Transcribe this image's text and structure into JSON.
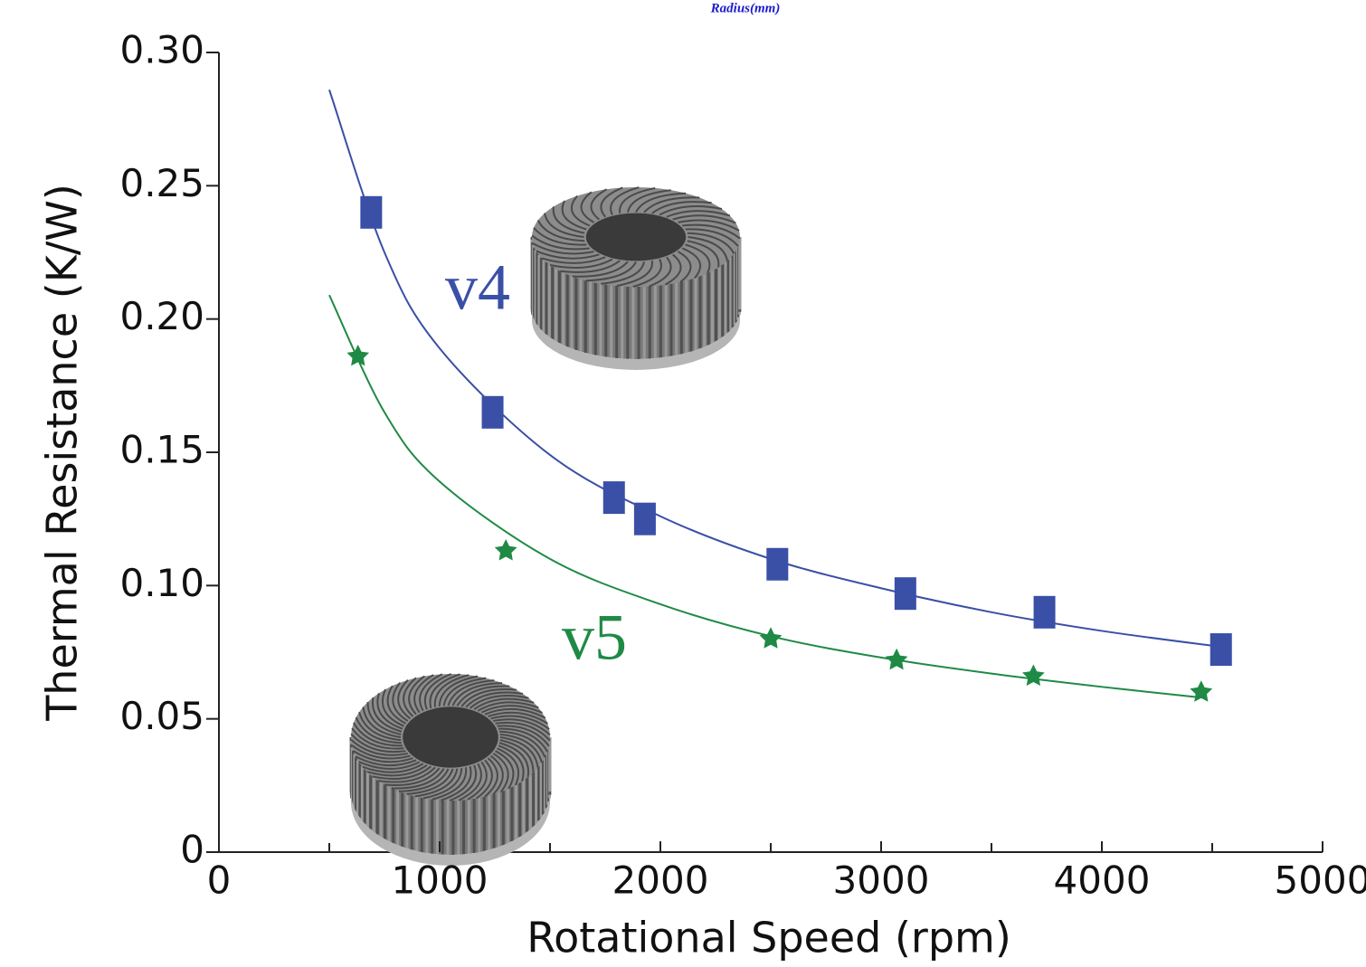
{
  "chart_data": {
    "type": "scatter",
    "top_caption": "Radius(mm)",
    "xlabel": "Rotational Speed (rpm)",
    "ylabel": "Thermal Resistance (K/W)",
    "xlim": [
      0,
      5000
    ],
    "ylim": [
      0,
      0.3
    ],
    "xticks": [
      0,
      1000,
      2000,
      3000,
      4000,
      5000
    ],
    "xminor_ticks": [
      500,
      1500,
      2500,
      3500,
      4500
    ],
    "yticks": [
      0,
      0.05,
      {
        "value": 0.1,
        "label": "0.10"
      },
      0.15,
      {
        "value": 0.2,
        "label": "0.20"
      },
      0.25,
      {
        "value": 0.3,
        "label": "0.30"
      }
    ],
    "series": [
      {
        "name": "v4",
        "color": "#3a4fa6",
        "marker": "square",
        "x": [
          690,
          1240,
          1790,
          1930,
          2530,
          3110,
          3740,
          4540
        ],
        "values": [
          0.24,
          0.165,
          0.133,
          0.125,
          0.108,
          0.097,
          0.09,
          0.076
        ],
        "fit_x": [
          500,
          750,
          1000,
          1500,
          2000,
          2500,
          3000,
          3500,
          4000,
          4540
        ],
        "fit_values": [
          0.286,
          0.225,
          0.189,
          0.149,
          0.126,
          0.11,
          0.099,
          0.09,
          0.083,
          0.077
        ]
      },
      {
        "name": "v5",
        "color": "#1f8a45",
        "marker": "star",
        "x": [
          630,
          1300,
          2500,
          3070,
          3690,
          4450
        ],
        "values": [
          0.186,
          0.113,
          0.08,
          0.072,
          0.066,
          0.06
        ],
        "fit_x": [
          500,
          750,
          1000,
          1500,
          2000,
          2500,
          3000,
          3500,
          4000,
          4450
        ],
        "fit_values": [
          0.209,
          0.165,
          0.139,
          0.11,
          0.093,
          0.081,
          0.073,
          0.067,
          0.062,
          0.058
        ]
      }
    ]
  }
}
